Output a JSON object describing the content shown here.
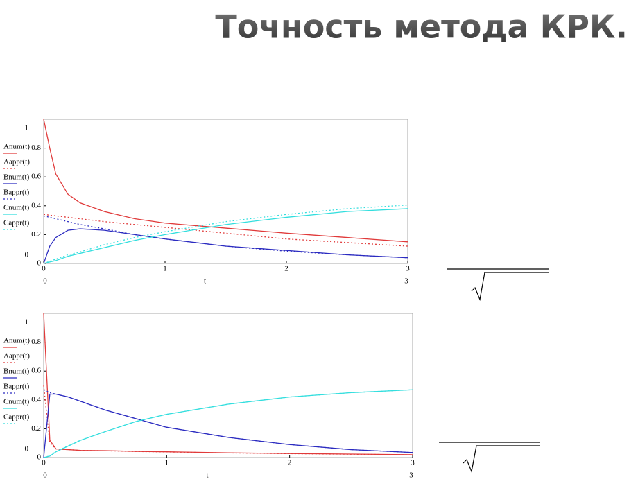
{
  "title": "Точность метода КРК.",
  "chart_data": [
    {
      "type": "line",
      "xlabel": "t",
      "x": [
        0,
        0.05,
        0.1,
        0.2,
        0.3,
        0.5,
        0.75,
        1,
        1.5,
        2,
        2.5,
        3
      ],
      "xlim": [
        0,
        3
      ],
      "xticks": [
        0,
        1,
        2,
        3
      ],
      "ylim": [
        0,
        1
      ],
      "yticks": [
        0,
        0.2,
        0.4,
        0.6,
        0.8
      ],
      "series": [
        {
          "name": "Anum(t)",
          "color": "#e03a3a",
          "dashed": false,
          "values": [
            1.0,
            0.8,
            0.62,
            0.48,
            0.42,
            0.36,
            0.31,
            0.28,
            0.245,
            0.21,
            0.18,
            0.15
          ]
        },
        {
          "name": "Aappr(t)",
          "color": "#e03a3a",
          "dashed": true,
          "values": [
            0.34,
            0.335,
            0.33,
            0.32,
            0.31,
            0.29,
            0.27,
            0.25,
            0.21,
            0.17,
            0.145,
            0.12
          ]
        },
        {
          "name": "Bnum(t)",
          "color": "#2b2bc0",
          "dashed": false,
          "values": [
            0,
            0.12,
            0.18,
            0.23,
            0.24,
            0.23,
            0.2,
            0.17,
            0.12,
            0.09,
            0.06,
            0.04
          ]
        },
        {
          "name": "Bappr(t)",
          "color": "#2b2bc0",
          "dashed": true,
          "values": [
            0.33,
            0.32,
            0.31,
            0.29,
            0.27,
            0.24,
            0.2,
            0.17,
            0.12,
            0.085,
            0.06,
            0.04
          ]
        },
        {
          "name": "Cnum(t)",
          "color": "#33dede",
          "dashed": false,
          "values": [
            0,
            0.01,
            0.02,
            0.05,
            0.07,
            0.11,
            0.16,
            0.2,
            0.27,
            0.32,
            0.36,
            0.38
          ]
        },
        {
          "name": "Cappr(t)",
          "color": "#33dede",
          "dashed": true,
          "values": [
            0,
            0.015,
            0.03,
            0.06,
            0.08,
            0.13,
            0.18,
            0.22,
            0.29,
            0.34,
            0.38,
            0.405
          ]
        }
      ]
    },
    {
      "type": "line",
      "xlabel": "t",
      "x": [
        0,
        0.05,
        0.1,
        0.2,
        0.3,
        0.5,
        0.75,
        1,
        1.5,
        2,
        2.5,
        3
      ],
      "xlim": [
        0,
        3
      ],
      "xticks": [
        0,
        1,
        2,
        3
      ],
      "ylim": [
        0,
        1
      ],
      "yticks": [
        0,
        0.2,
        0.4,
        0.6,
        0.8
      ],
      "series": [
        {
          "name": "Anum(t)",
          "color": "#e03a3a",
          "dashed": false,
          "values": [
            1.0,
            0.12,
            0.06,
            0.055,
            0.05,
            0.048,
            0.043,
            0.04,
            0.033,
            0.028,
            0.024,
            0.02
          ]
        },
        {
          "name": "Aappr(t)",
          "color": "#e03a3a",
          "dashed": true,
          "values": [
            0.5,
            0.1,
            0.06,
            0.055,
            0.05,
            0.047,
            0.042,
            0.039,
            0.032,
            0.027,
            0.023,
            0.019
          ]
        },
        {
          "name": "Bnum(t)",
          "color": "#2b2bc0",
          "dashed": false,
          "values": [
            0,
            0.44,
            0.44,
            0.42,
            0.39,
            0.33,
            0.27,
            0.21,
            0.14,
            0.09,
            0.055,
            0.035
          ]
        },
        {
          "name": "Bappr(t)",
          "color": "#2b2bc0",
          "dashed": true,
          "values": [
            0.47,
            0.45,
            0.44,
            0.42,
            0.39,
            0.33,
            0.27,
            0.21,
            0.14,
            0.09,
            0.055,
            0.035
          ]
        },
        {
          "name": "Cnum(t)",
          "color": "#33dede",
          "dashed": false,
          "values": [
            0,
            0.01,
            0.04,
            0.08,
            0.12,
            0.18,
            0.25,
            0.3,
            0.37,
            0.42,
            0.45,
            0.47
          ]
        },
        {
          "name": "Cappr(t)",
          "color": "#33dede",
          "dashed": true,
          "values": [
            0,
            0.012,
            0.042,
            0.082,
            0.12,
            0.18,
            0.25,
            0.3,
            0.37,
            0.42,
            0.45,
            0.47
          ]
        }
      ]
    }
  ]
}
